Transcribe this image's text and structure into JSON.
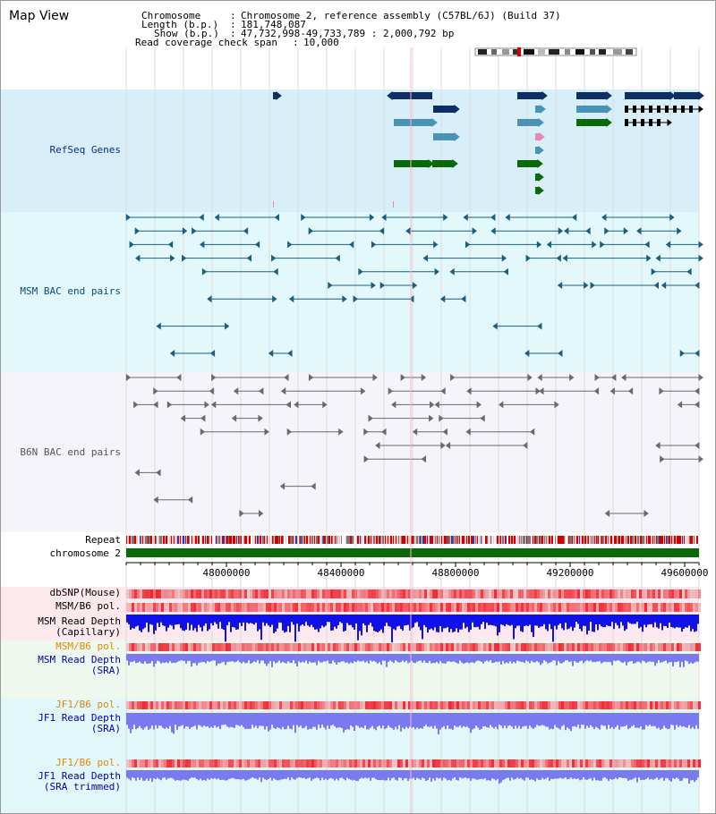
{
  "header": {
    "title": "Map View",
    "chromosome_label": "Chromosome",
    "chromosome_value": "Chromosome 2, reference assembly (C57BL/6J) (Build 37)",
    "length_label": "Length (b.p.)",
    "length_value": "181,748,087",
    "show_label": "Show (b.p.)",
    "show_value": "47,732,998-49,733,789 : 2,000,792 bp",
    "coverage_label": "Read coverage check span",
    "coverage_value": "10,000"
  },
  "tracks": {
    "refseq": "RefSeq Genes",
    "msm_bac": "MSM BAC end pairs",
    "b6n_bac": "B6N BAC end pairs",
    "repeat": "Repeat",
    "chromosome": "chromosome 2",
    "dbsnp": "dbSNP(Mouse)",
    "msm_b6_pol_1": "MSM/B6 pol.",
    "msm_depth_cap_1": "MSM Read Depth",
    "msm_depth_cap_2": "(Capillary)",
    "msm_b6_pol_2": "MSM/B6 pol.",
    "msm_depth_sra_1": "MSM Read Depth",
    "msm_depth_sra_2": "(SRA)",
    "jf1_b6_pol_1": "JF1/B6 pol.",
    "jf1_depth_sra_1": "JF1 Read Depth",
    "jf1_depth_sra_2": "(SRA)",
    "jf1_b6_pol_2": "JF1/B6 pol.",
    "jf1_depth_trim_1": "JF1 Read Depth",
    "jf1_depth_trim_2": "(SRA trimmed)"
  },
  "axis": {
    "ticks": [
      "48000000",
      "48400000",
      "48800000",
      "49200000",
      "49600000"
    ]
  },
  "colors": {
    "gene_navy": "#0d2f63",
    "gene_teal": "#4a93b5",
    "gene_green": "#0a6a0a",
    "msm_line": "#1d5f80",
    "b6n_line": "#6a6a6a",
    "chrom_green": "#0a6a0a",
    "depth_blue": "#1010e8",
    "depth_light": "#7a7af0",
    "msm_label": "#0a4a7a",
    "pol_label_orange": "#e08a00",
    "depth_label_blue": "#0000aa"
  }
}
